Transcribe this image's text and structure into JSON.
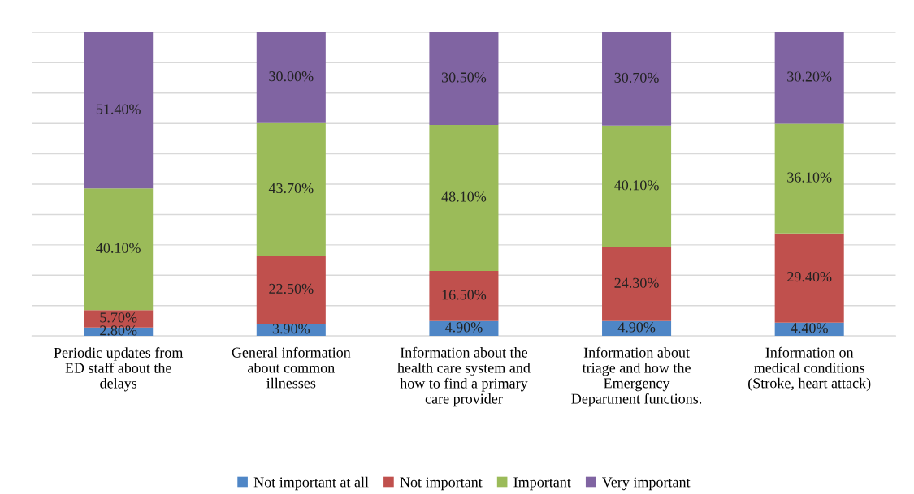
{
  "chart_data": {
    "type": "bar",
    "stacked": true,
    "categories": [
      "Periodic updates from\nED staff about the\ndelays",
      "General information\nabout common\nillnesses",
      "Information about the\nhealth care system and\nhow to find a primary\ncare provider",
      "Information about\ntriage and how the\nEmergency\nDepartment functions.",
      "Information on\nmedical conditions\n(Stroke, heart attack)"
    ],
    "series": [
      {
        "name": "Not important at all",
        "color": "#4f86c6",
        "values": [
          2.8,
          3.9,
          4.9,
          4.9,
          4.4
        ],
        "value_labels": [
          "2.80%",
          "3.90%",
          "4.90%",
          "4.90%",
          "4.40%"
        ]
      },
      {
        "name": "Not important",
        "color": "#c0504d",
        "values": [
          5.7,
          22.5,
          16.5,
          24.3,
          29.4
        ],
        "value_labels": [
          "5.70%",
          "22.50%",
          "16.50%",
          "24.30%",
          "29.40%"
        ]
      },
      {
        "name": "Important",
        "color": "#9bbb59",
        "values": [
          40.1,
          43.7,
          48.1,
          40.1,
          36.1
        ],
        "value_labels": [
          "40.10%",
          "43.70%",
          "48.10%",
          "40.10%",
          "36.10%"
        ]
      },
      {
        "name": "Very important",
        "color": "#8064a2",
        "values": [
          51.4,
          30.0,
          30.5,
          30.7,
          30.2
        ],
        "value_labels": [
          "51.40%",
          "30.00%",
          "30.50%",
          "30.70%",
          "30.20%"
        ]
      }
    ],
    "ylim": [
      0,
      100.1
    ],
    "yticks": [
      {
        "value": 0,
        "label": null
      },
      {
        "value": 10,
        "label": null
      },
      {
        "value": 20,
        "label": null
      },
      {
        "value": 30,
        "label": null
      },
      {
        "value": 40,
        "label": null
      },
      {
        "value": 50,
        "label": null
      },
      {
        "value": 60,
        "label": null
      },
      {
        "value": 70,
        "label": null
      },
      {
        "value": 80,
        "label": null
      },
      {
        "value": 90,
        "label": null
      },
      {
        "value": 100,
        "label": null
      }
    ],
    "tick_labels": "x",
    "grid": "y",
    "legend": "bottom"
  }
}
